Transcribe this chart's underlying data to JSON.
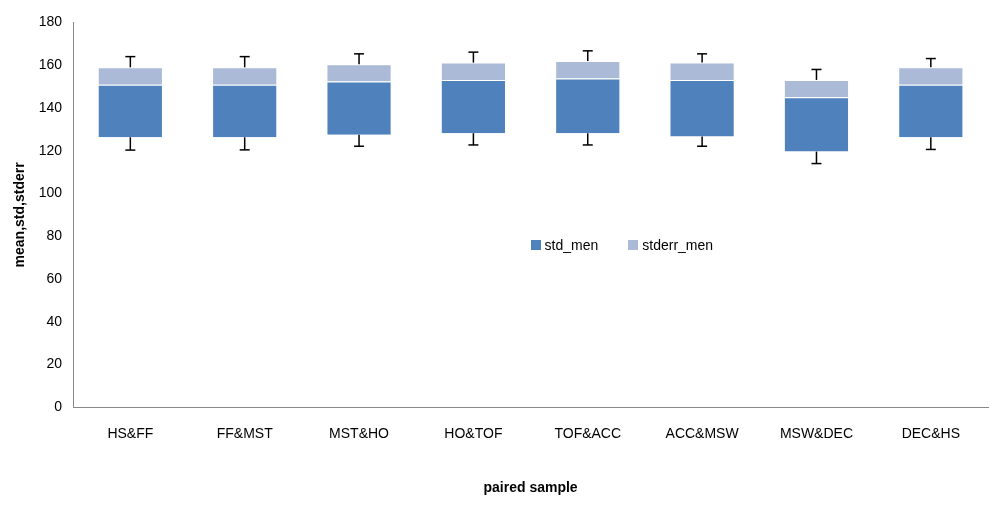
{
  "chart_data": {
    "type": "bar",
    "xlabel": "paired sample",
    "ylabel": "mean,std,stderr",
    "categories": [
      "HS&FF",
      "FF&MST",
      "MST&HO",
      "HO&TOF",
      "TOF&ACC",
      "ACC&MSW",
      "MSW&DEC",
      "DEC&HS"
    ],
    "series": [
      {
        "name": "std_men",
        "color": "#4f81bd",
        "base": [
          126.3,
          126.3,
          127.5,
          128.2,
          128.2,
          126.7,
          119.6,
          126.3
        ],
        "values": [
          24.6,
          24.6,
          24.9,
          24.9,
          25.6,
          26.4,
          25.4,
          24.6
        ],
        "errors": [
          [
            120.3,
            126.3
          ],
          [
            120.4,
            126.3
          ],
          [
            122.1,
            127.5
          ],
          [
            122.7,
            128.2
          ],
          [
            122.7,
            128.2
          ],
          [
            122.1,
            126.7
          ],
          [
            114,
            119.6
          ],
          [
            120.6,
            126.3
          ]
        ]
      },
      {
        "name": "stderr_men",
        "color": "#aabad7",
        "base": [
          150.9,
          150.9,
          152.4,
          153.1,
          153.8,
          153.1,
          145,
          150.9
        ],
        "values": [
          8.1,
          8.1,
          8,
          8.1,
          8.1,
          8.1,
          8.1,
          8.1
        ],
        "errors": [
          [
            159,
            164
          ],
          [
            159,
            164
          ],
          [
            160.4,
            165.3
          ],
          [
            161.2,
            166.1
          ],
          [
            161.9,
            166.7
          ],
          [
            161.2,
            165.3
          ],
          [
            153.1,
            158
          ],
          [
            159,
            163.1
          ]
        ]
      }
    ],
    "ylim": [
      0,
      180
    ],
    "yticks": [
      0,
      20,
      40,
      60,
      80,
      100,
      120,
      140,
      160,
      180
    ],
    "grid": false,
    "legend": "center"
  }
}
